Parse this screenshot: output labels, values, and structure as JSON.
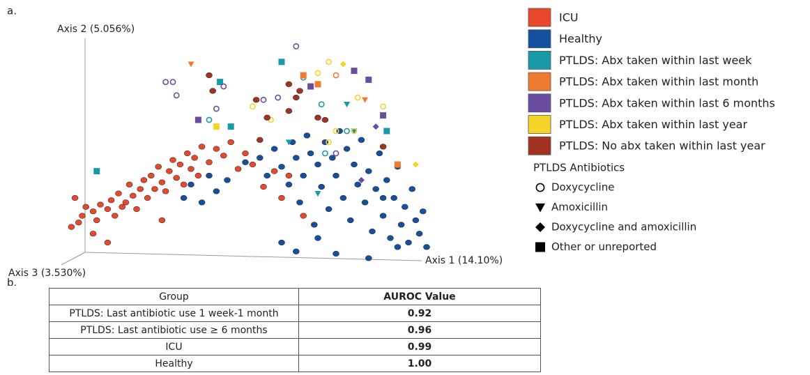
{
  "chart_data": {
    "type": "scatter",
    "panel_label": "a.",
    "xlabel": "Axis 1 (14.10%)",
    "ylabel": "Axis 2 (5.056%)",
    "zlabel": "Axis 3 (3.530%)",
    "xlim": [
      0,
      100
    ],
    "ylim": [
      0,
      100
    ],
    "series": [
      {
        "name": "ICU",
        "color": "#e8492c",
        "marker": "circle",
        "x": [
          2,
          4,
          5,
          6,
          8,
          9,
          10,
          12,
          13,
          14,
          15,
          16,
          17,
          18,
          19,
          20,
          21,
          22,
          23,
          24,
          25,
          26,
          27,
          28,
          29,
          30,
          31,
          32,
          33,
          34,
          35,
          36,
          37,
          38,
          40,
          42,
          44,
          46,
          48,
          50,
          52,
          55,
          58,
          60,
          62,
          66,
          8,
          12,
          27,
          3
        ],
        "y": [
          17,
          19,
          22,
          26,
          24,
          20,
          27,
          25,
          29,
          22,
          32,
          26,
          28,
          36,
          31,
          25,
          34,
          38,
          30,
          40,
          34,
          44,
          37,
          33,
          42,
          47,
          39,
          45,
          36,
          50,
          43,
          48,
          40,
          53,
          46,
          52,
          49,
          55,
          43,
          50,
          45,
          35,
          42,
          30,
          40,
          22,
          14,
          10,
          20,
          30
        ]
      },
      {
        "name": "Healthy",
        "color": "#1550a0",
        "marker": "circle",
        "x": [
          33,
          35,
          38,
          40,
          42,
          45,
          50,
          54,
          56,
          58,
          60,
          62,
          63,
          64,
          65,
          66,
          67,
          68,
          69,
          70,
          71,
          72,
          73,
          74,
          75,
          76,
          77,
          78,
          79,
          80,
          81,
          82,
          83,
          84,
          85,
          86,
          87,
          88,
          89,
          90,
          91,
          92,
          93,
          94,
          95,
          96,
          97,
          98,
          99,
          100,
          60,
          64,
          70,
          84,
          75,
          88,
          92
        ],
        "y": [
          30,
          36,
          28,
          40,
          33,
          38,
          46,
          48,
          40,
          52,
          44,
          36,
          55,
          48,
          28,
          40,
          58,
          50,
          18,
          45,
          35,
          55,
          25,
          48,
          40,
          60,
          30,
          52,
          20,
          45,
          36,
          56,
          28,
          42,
          15,
          34,
          50,
          22,
          38,
          12,
          30,
          44,
          18,
          26,
          10,
          34,
          20,
          14,
          24,
          8,
          10,
          6,
          12,
          3,
          5,
          30,
          8
        ]
      },
      {
        "name": "PTLDS: Abx taken within last week",
        "color": "#1a9aa8",
        "x": [
          60,
          43,
          46,
          9,
          89,
          66,
          71,
          78,
          72,
          62,
          78,
          80,
          70,
          40
        ],
        "y": [
          91,
          82,
          62,
          42,
          60,
          84,
          72,
          60,
          50,
          55,
          72,
          60,
          32,
          65
        ],
        "markers": [
          "square",
          "square",
          "square",
          "square",
          "square",
          "circle-open",
          "circle-open",
          "circle-open",
          "circle-open",
          "triangle",
          "triangle",
          "triangle",
          "triangle",
          "circle-open"
        ]
      },
      {
        "name": "PTLDS: Abx taken within last month",
        "color": "#ef7b30",
        "x": [
          35,
          66,
          70,
          92,
          83,
          75
        ],
        "y": [
          90,
          85,
          81,
          45,
          74,
          85
        ],
        "markers": [
          "triangle",
          "square",
          "square",
          "square",
          "triangle",
          "circle-open"
        ]
      },
      {
        "name": "PTLDS: Abx taken within last 6 months",
        "color": "#6a4ca0",
        "x": [
          64,
          80,
          68,
          59,
          37,
          42,
          88,
          84,
          75,
          28,
          31,
          44,
          82,
          86,
          30,
          55
        ],
        "y": [
          98,
          87,
          80,
          75,
          65,
          70,
          67,
          83,
          50,
          82,
          76,
          80,
          38,
          62,
          82,
          74
        ],
        "markers": [
          "circle-open",
          "square",
          "square",
          "circle-open",
          "square",
          "circle-open",
          "square",
          "square",
          "circle-open",
          "circle-open",
          "circle-open",
          "circle-open",
          "diamond",
          "diamond",
          "circle-open",
          "circle-open"
        ]
      },
      {
        "name": "PTLDS: Abx taken within last year",
        "color": "#f5d328",
        "x": [
          70,
          73,
          81,
          75,
          42,
          52,
          80,
          88,
          73,
          77,
          97,
          57
        ],
        "y": [
          86,
          91,
          75,
          60,
          62,
          71,
          60,
          71,
          55,
          90,
          45,
          65
        ],
        "markers": [
          "circle-open",
          "circle-open",
          "circle-open",
          "circle-open",
          "square",
          "circle-open",
          "circle-open",
          "circle-open",
          "circle-open",
          "diamond",
          "diamond",
          "circle-open"
        ]
      },
      {
        "name": "PTLDS: No abx taken within last year",
        "color": "#a23323",
        "x": [
          40,
          41,
          65,
          62,
          70,
          64,
          54,
          72,
          88,
          56,
          53,
          62
        ],
        "y": [
          85,
          78,
          78,
          69,
          66,
          75,
          56,
          65,
          53,
          66,
          74,
          81
        ],
        "markers": [
          "circle",
          "circle",
          "circle",
          "circle",
          "circle",
          "circle",
          "circle",
          "circle",
          "circle",
          "circle",
          "circle",
          "circle"
        ]
      }
    ],
    "symbol_legend": {
      "title": "PTLDS Antibiotics",
      "entries": [
        {
          "label": "Doxycycline",
          "marker": "circle-open"
        },
        {
          "label": "Amoxicillin",
          "marker": "triangle"
        },
        {
          "label": "Doxycycline and amoxicillin",
          "marker": "diamond"
        },
        {
          "label": "Other or unreported",
          "marker": "square"
        }
      ]
    }
  },
  "table": {
    "panel_label": "b.",
    "header": [
      "Group",
      "AUROC Value"
    ],
    "rows": [
      [
        "PTLDS: Last antibiotic use 1 week-1 month",
        "0.92"
      ],
      [
        "PTLDS: Last antibiotic use ≥ 6 months",
        "0.96"
      ],
      [
        "ICU",
        "0.99"
      ],
      [
        "Healthy",
        "1.00"
      ]
    ]
  }
}
